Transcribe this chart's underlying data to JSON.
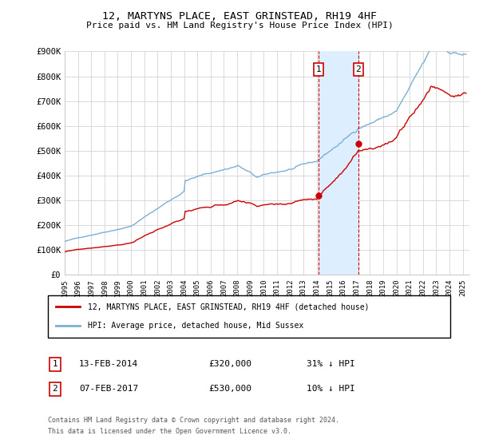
{
  "title": "12, MARTYNS PLACE, EAST GRINSTEAD, RH19 4HF",
  "subtitle": "Price paid vs. HM Land Registry's House Price Index (HPI)",
  "legend_line1": "12, MARTYNS PLACE, EAST GRINSTEAD, RH19 4HF (detached house)",
  "legend_line2": "HPI: Average price, detached house, Mid Sussex",
  "transaction1_date": 2014.12,
  "transaction1_price": 320000,
  "transaction1_label": "13-FEB-2014",
  "transaction1_pct": "31% ↓ HPI",
  "transaction2_date": 2017.12,
  "transaction2_price": 530000,
  "transaction2_label": "07-FEB-2017",
  "transaction2_pct": "10% ↓ HPI",
  "xmin": 1995.0,
  "xmax": 2025.5,
  "ymin": 0,
  "ymax": 900000,
  "footnote1": "Contains HM Land Registry data © Crown copyright and database right 2024.",
  "footnote2": "This data is licensed under the Open Government Licence v3.0.",
  "red_color": "#cc0000",
  "blue_color": "#7ab0d4",
  "shade_color": "#ddeeff",
  "background_color": "#ffffff",
  "grid_color": "#cccccc"
}
